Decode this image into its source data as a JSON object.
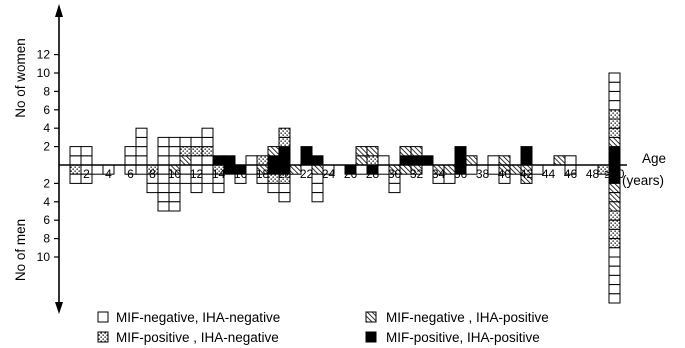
{
  "chart_data": {
    "type": "bar",
    "subtype": "stacked-unit-blocks, mirrored (women above axis, men below)",
    "ylabel_top": "No of women",
    "ylabel_bottom": "No of men",
    "xlabel_line1": "Age",
    "xlabel_line2": "(years)",
    "x_tick_labels": [
      "2",
      "4",
      "6",
      "8",
      "10",
      "12",
      "14",
      "16",
      "18",
      "20",
      "22",
      "24",
      "26",
      "28",
      "30",
      "32",
      "34",
      "36",
      "38",
      "40",
      "42",
      "44",
      "46",
      "48",
      "≥50"
    ],
    "y_ticks_women": [
      2,
      4,
      6,
      8,
      10,
      12
    ],
    "y_ticks_men": [
      2,
      4,
      6,
      8,
      10
    ],
    "ylim_women": [
      0,
      12
    ],
    "ylim_men": [
      0,
      11
    ],
    "categories": [
      "MIF-negative, IHA-negative",
      "MIF-positive , IHA-negative",
      "MIF-negative , IHA-positive",
      "MIF-positive, IHA-positive"
    ],
    "category_patterns": {
      "MIF-negative, IHA-negative": "white",
      "MIF-positive , IHA-negative": "dotted",
      "MIF-negative , IHA-positive": "hatched",
      "MIF-positive, IHA-positive": "black"
    },
    "women": [
      {
        "age": 1,
        "blocks": [
          "white",
          "white"
        ]
      },
      {
        "age": 2,
        "blocks": [
          "white",
          "white"
        ]
      },
      {
        "age": 6,
        "blocks": [
          "white",
          "white"
        ]
      },
      {
        "age": 7,
        "blocks": [
          "white",
          "white",
          "white",
          "white"
        ]
      },
      {
        "age": 9,
        "blocks": [
          "white",
          "white",
          "white"
        ]
      },
      {
        "age": 10,
        "blocks": [
          "white",
          "white",
          "white"
        ]
      },
      {
        "age": 11,
        "blocks": [
          "hatched",
          "dotted",
          "white"
        ]
      },
      {
        "age": 12,
        "blocks": [
          "white",
          "dotted",
          "white"
        ]
      },
      {
        "age": 13,
        "blocks": [
          "white",
          "dotted",
          "white",
          "white"
        ]
      },
      {
        "age": 14,
        "blocks": [
          "black"
        ]
      },
      {
        "age": 15,
        "blocks": [
          "black"
        ]
      },
      {
        "age": 17,
        "blocks": [
          "white"
        ]
      },
      {
        "age": 18,
        "blocks": [
          "dotted"
        ]
      },
      {
        "age": 19,
        "blocks": [
          "black",
          "hatched"
        ]
      },
      {
        "age": 20,
        "blocks": [
          "black",
          "black",
          "dotted",
          "dotted"
        ]
      },
      {
        "age": 22,
        "blocks": [
          "black",
          "black"
        ]
      },
      {
        "age": 23,
        "blocks": [
          "black"
        ]
      },
      {
        "age": 27,
        "blocks": [
          "hatched",
          "hatched"
        ]
      },
      {
        "age": 28,
        "blocks": [
          "dotted",
          "hatched"
        ]
      },
      {
        "age": 29,
        "blocks": [
          "white"
        ]
      },
      {
        "age": 31,
        "blocks": [
          "black",
          "hatched"
        ]
      },
      {
        "age": 32,
        "blocks": [
          "black",
          "hatched"
        ]
      },
      {
        "age": 33,
        "blocks": [
          "black"
        ]
      },
      {
        "age": 36,
        "blocks": [
          "black",
          "black"
        ]
      },
      {
        "age": 37,
        "blocks": [
          "hatched"
        ]
      },
      {
        "age": 39,
        "blocks": [
          "white"
        ]
      },
      {
        "age": 40,
        "blocks": [
          "hatched"
        ]
      },
      {
        "age": 42,
        "blocks": [
          "black",
          "black"
        ]
      },
      {
        "age": 45,
        "blocks": [
          "hatched"
        ]
      },
      {
        "age": 46,
        "blocks": [
          "white"
        ]
      },
      {
        "age": 50,
        "blocks": [
          "black",
          "black",
          "hatched",
          "dotted",
          "dotted",
          "dotted",
          "white",
          "white",
          "white",
          "white"
        ]
      }
    ],
    "men": [
      {
        "age": 1,
        "blocks": [
          "dotted",
          "white"
        ]
      },
      {
        "age": 2,
        "blocks": [
          "white",
          "white"
        ]
      },
      {
        "age": 3,
        "blocks": [
          "white"
        ]
      },
      {
        "age": 4,
        "blocks": [
          "white"
        ]
      },
      {
        "age": 6,
        "blocks": [
          "white"
        ]
      },
      {
        "age": 7,
        "blocks": [
          "white"
        ]
      },
      {
        "age": 8,
        "blocks": [
          "dotted",
          "white",
          "white"
        ]
      },
      {
        "age": 9,
        "blocks": [
          "white",
          "white",
          "white",
          "white",
          "white"
        ]
      },
      {
        "age": 10,
        "blocks": [
          "hatched",
          "white",
          "white",
          "white",
          "white"
        ]
      },
      {
        "age": 11,
        "blocks": [
          "white",
          "white"
        ]
      },
      {
        "age": 12,
        "blocks": [
          "white",
          "white",
          "white"
        ]
      },
      {
        "age": 13,
        "blocks": [
          "white",
          "white"
        ]
      },
      {
        "age": 14,
        "blocks": [
          "dotted",
          "white",
          "white"
        ]
      },
      {
        "age": 15,
        "blocks": [
          "black"
        ]
      },
      {
        "age": 16,
        "blocks": [
          "black",
          "white"
        ]
      },
      {
        "age": 17,
        "blocks": [
          "white"
        ]
      },
      {
        "age": 18,
        "blocks": [
          "hatched",
          "white"
        ]
      },
      {
        "age": 19,
        "blocks": [
          "black",
          "dotted",
          "white"
        ]
      },
      {
        "age": 20,
        "blocks": [
          "black",
          "dotted",
          "white",
          "white"
        ]
      },
      {
        "age": 21,
        "blocks": [
          "hatched"
        ]
      },
      {
        "age": 23,
        "blocks": [
          "hatched",
          "white",
          "white",
          "white"
        ]
      },
      {
        "age": 24,
        "blocks": [
          "white"
        ]
      },
      {
        "age": 26,
        "blocks": [
          "black"
        ]
      },
      {
        "age": 27,
        "blocks": [
          "white"
        ]
      },
      {
        "age": 28,
        "blocks": [
          "black"
        ]
      },
      {
        "age": 29,
        "blocks": [
          "white"
        ]
      },
      {
        "age": 30,
        "blocks": [
          "hatched",
          "white",
          "white"
        ]
      },
      {
        "age": 31,
        "blocks": [
          "hatched"
        ]
      },
      {
        "age": 32,
        "blocks": [
          "hatched"
        ]
      },
      {
        "age": 34,
        "blocks": [
          "hatched",
          "white"
        ]
      },
      {
        "age": 35,
        "blocks": [
          "hatched",
          "white"
        ]
      },
      {
        "age": 36,
        "blocks": [
          "black"
        ]
      },
      {
        "age": 37,
        "blocks": [
          "white"
        ]
      },
      {
        "age": 39,
        "blocks": [
          "white"
        ]
      },
      {
        "age": 40,
        "blocks": [
          "hatched",
          "white"
        ]
      },
      {
        "age": 41,
        "blocks": [
          "hatched"
        ]
      },
      {
        "age": 42,
        "blocks": [
          "hatched",
          "hatched"
        ]
      },
      {
        "age": 43,
        "blocks": [
          "white"
        ]
      },
      {
        "age": 46,
        "blocks": [
          "white"
        ]
      },
      {
        "age": 49,
        "blocks": [
          "dotted"
        ]
      },
      {
        "age": 50,
        "blocks": [
          "black",
          "black",
          "hatched",
          "hatched",
          "hatched",
          "dotted",
          "dotted",
          "dotted",
          "dotted",
          "white",
          "white",
          "white",
          "white",
          "white",
          "white"
        ]
      }
    ]
  }
}
